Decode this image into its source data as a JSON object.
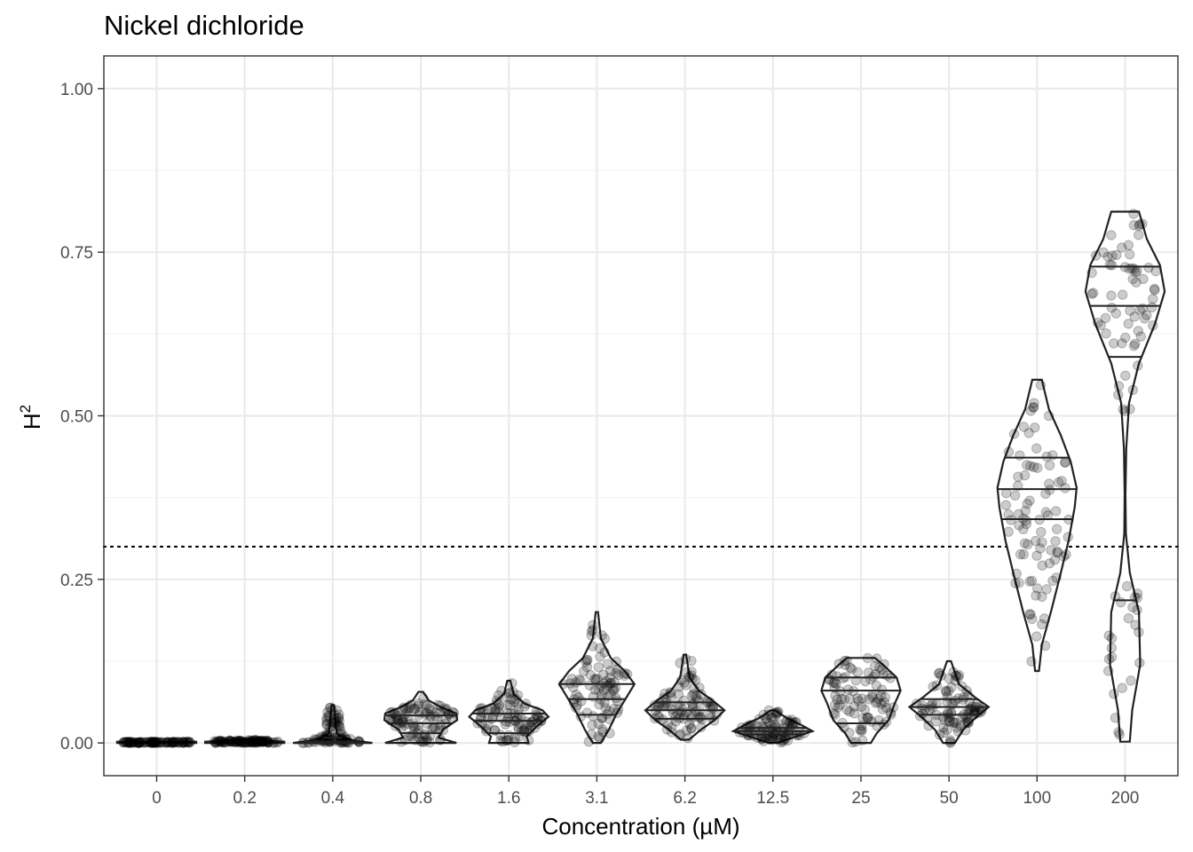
{
  "chart_data": {
    "type": "violin",
    "title": "Nickel dichloride",
    "xlabel": "Concentration (µM)",
    "ylabel_main": "H",
    "ylabel_sup": "2",
    "ylim": [
      -0.05,
      1.05
    ],
    "y_ticks": [
      0.0,
      0.25,
      0.5,
      0.75,
      1.0
    ],
    "y_tick_labels": [
      "0.00",
      "0.25",
      "0.50",
      "0.75",
      "1.00"
    ],
    "grid": true,
    "threshold_line": {
      "y": 0.3,
      "style": "dotted"
    },
    "categories": [
      "0",
      "0.2",
      "0.4",
      "0.8",
      "1.6",
      "3.1",
      "6.2",
      "12.5",
      "25",
      "50",
      "100",
      "200"
    ],
    "groups": [
      {
        "category": "0",
        "min": 0.0,
        "max": 0.002,
        "quantiles": [],
        "profile": [
          [
            0.0,
            1.0
          ],
          [
            0.002,
            1.0
          ]
        ]
      },
      {
        "category": "0.2",
        "min": 0.0,
        "max": 0.005,
        "quantiles": [],
        "profile": [
          [
            0.0,
            1.0
          ],
          [
            0.002,
            1.0
          ],
          [
            0.005,
            0.05
          ]
        ]
      },
      {
        "category": "0.4",
        "min": 0.0,
        "max": 0.058,
        "quantiles": [
          0.0,
          0.002,
          0.008
        ],
        "profile": [
          [
            0.0,
            1.0
          ],
          [
            0.003,
            0.6
          ],
          [
            0.008,
            0.25
          ],
          [
            0.015,
            0.1
          ],
          [
            0.03,
            0.07
          ],
          [
            0.045,
            0.05
          ],
          [
            0.058,
            0.03
          ]
        ]
      },
      {
        "category": "0.8",
        "min": 0.0,
        "max": 0.078,
        "quantiles": [
          0.015,
          0.03,
          0.042
        ],
        "profile": [
          [
            0.0,
            0.9
          ],
          [
            0.008,
            0.45
          ],
          [
            0.02,
            0.55
          ],
          [
            0.035,
            0.92
          ],
          [
            0.045,
            0.9
          ],
          [
            0.055,
            0.5
          ],
          [
            0.065,
            0.2
          ],
          [
            0.078,
            0.06
          ]
        ]
      },
      {
        "category": "1.6",
        "min": 0.0,
        "max": 0.095,
        "quantiles": [
          0.015,
          0.034,
          0.045
        ],
        "profile": [
          [
            0.0,
            0.5
          ],
          [
            0.01,
            0.45
          ],
          [
            0.025,
            0.7
          ],
          [
            0.04,
            1.0
          ],
          [
            0.05,
            0.85
          ],
          [
            0.06,
            0.4
          ],
          [
            0.075,
            0.12
          ],
          [
            0.095,
            0.04
          ]
        ]
      },
      {
        "category": "3.1",
        "min": 0.0,
        "max": 0.2,
        "quantiles": [
          0.043,
          0.067,
          0.09
        ],
        "profile": [
          [
            0.0,
            0.1
          ],
          [
            0.02,
            0.3
          ],
          [
            0.045,
            0.5
          ],
          [
            0.07,
            0.75
          ],
          [
            0.09,
            0.95
          ],
          [
            0.11,
            0.7
          ],
          [
            0.13,
            0.35
          ],
          [
            0.16,
            0.1
          ],
          [
            0.2,
            0.03
          ]
        ]
      },
      {
        "category": "6.2",
        "min": 0.005,
        "max": 0.135,
        "quantiles": [
          0.037,
          0.05,
          0.062
        ],
        "profile": [
          [
            0.005,
            0.1
          ],
          [
            0.02,
            0.4
          ],
          [
            0.035,
            0.75
          ],
          [
            0.05,
            1.0
          ],
          [
            0.065,
            0.7
          ],
          [
            0.08,
            0.35
          ],
          [
            0.1,
            0.12
          ],
          [
            0.135,
            0.03
          ]
        ]
      },
      {
        "category": "12.5",
        "min": 0.0,
        "max": 0.05,
        "quantiles": [
          0.013,
          0.018,
          0.023
        ],
        "profile": [
          [
            0.0,
            0.1
          ],
          [
            0.008,
            0.5
          ],
          [
            0.018,
            1.0
          ],
          [
            0.028,
            0.7
          ],
          [
            0.038,
            0.35
          ],
          [
            0.05,
            0.05
          ]
        ]
      },
      {
        "category": "25",
        "min": 0.0,
        "max": 0.13,
        "quantiles": [
          0.03,
          0.08,
          0.1
        ],
        "profile": [
          [
            0.0,
            0.25
          ],
          [
            0.015,
            0.4
          ],
          [
            0.035,
            0.7
          ],
          [
            0.06,
            0.85
          ],
          [
            0.08,
            1.0
          ],
          [
            0.1,
            0.9
          ],
          [
            0.12,
            0.55
          ],
          [
            0.13,
            0.35
          ]
        ]
      },
      {
        "category": "50",
        "min": 0.0,
        "max": 0.125,
        "quantiles": [
          0.043,
          0.055,
          0.067
        ],
        "profile": [
          [
            0.0,
            0.15
          ],
          [
            0.02,
            0.35
          ],
          [
            0.04,
            0.7
          ],
          [
            0.055,
            1.0
          ],
          [
            0.07,
            0.65
          ],
          [
            0.09,
            0.25
          ],
          [
            0.125,
            0.05
          ]
        ]
      },
      {
        "category": "100",
        "min": 0.11,
        "max": 0.555,
        "quantiles": [
          0.342,
          0.388,
          0.436
        ],
        "profile": [
          [
            0.11,
            0.05
          ],
          [
            0.15,
            0.12
          ],
          [
            0.2,
            0.35
          ],
          [
            0.26,
            0.6
          ],
          [
            0.31,
            0.8
          ],
          [
            0.36,
            0.95
          ],
          [
            0.39,
            1.0
          ],
          [
            0.43,
            0.85
          ],
          [
            0.47,
            0.6
          ],
          [
            0.51,
            0.3
          ],
          [
            0.555,
            0.12
          ]
        ]
      },
      {
        "category": "200",
        "min": 0.002,
        "max": 0.812,
        "quantiles": [
          0.218,
          0.59,
          0.668,
          0.728
        ],
        "profile": [
          [
            0.002,
            0.12
          ],
          [
            0.05,
            0.18
          ],
          [
            0.12,
            0.38
          ],
          [
            0.2,
            0.35
          ],
          [
            0.26,
            0.12
          ],
          [
            0.32,
            0.02
          ],
          [
            0.38,
            0.01
          ],
          [
            0.45,
            0.03
          ],
          [
            0.52,
            0.1
          ],
          [
            0.58,
            0.35
          ],
          [
            0.64,
            0.75
          ],
          [
            0.69,
            1.0
          ],
          [
            0.73,
            0.88
          ],
          [
            0.77,
            0.55
          ],
          [
            0.812,
            0.35
          ]
        ]
      }
    ]
  }
}
